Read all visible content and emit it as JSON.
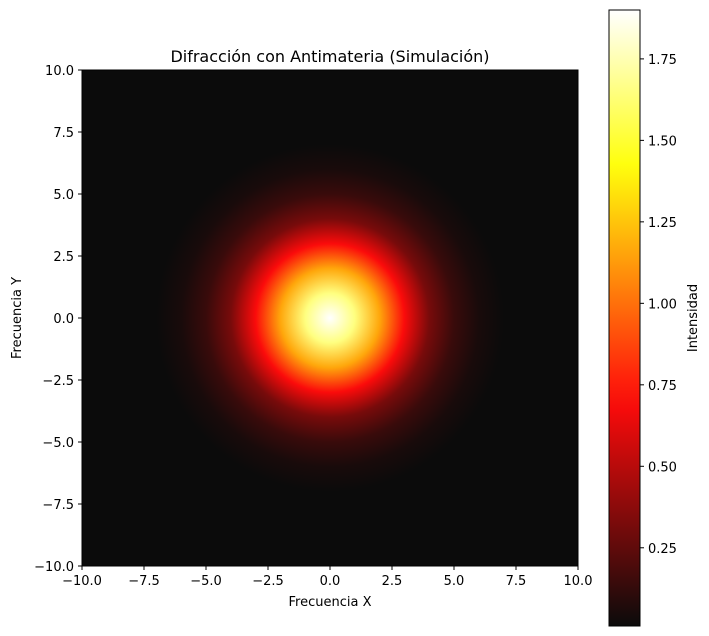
{
  "chart_data": {
    "type": "heatmap",
    "title": "Difracción con Antimateria (Simulación)",
    "xlabel": "Frecuencia X",
    "ylabel": "Frecuencia Y",
    "xlim": [
      -10,
      10
    ],
    "ylim": [
      -10,
      10
    ],
    "x_ticks": [
      -10,
      -7.5,
      -5,
      -2.5,
      0,
      2.5,
      5,
      7.5,
      10
    ],
    "x_tick_labels": [
      "−10.0",
      "−7.5",
      "−5.0",
      "−2.5",
      "0.0",
      "2.5",
      "5.0",
      "7.5",
      "10.0"
    ],
    "y_ticks": [
      -10,
      -7.5,
      -5,
      -2.5,
      0,
      2.5,
      5,
      7.5,
      10
    ],
    "y_tick_labels": [
      "−10.0",
      "−7.5",
      "−5.0",
      "−2.5",
      "0.0",
      "2.5",
      "5.0",
      "7.5",
      "10.0"
    ],
    "colormap": "hot",
    "field": {
      "shape": "radial gaussian",
      "center": [
        0,
        0
      ],
      "peak_intensity": 1.9,
      "intensity_at_radius": [
        {
          "r": 0,
          "value": 1.9
        },
        {
          "r": 1,
          "value": 1.65
        },
        {
          "r": 2,
          "value": 1.16
        },
        {
          "r": 3,
          "value": 0.69
        },
        {
          "r": 4,
          "value": 0.32
        },
        {
          "r": 5,
          "value": 0.14
        },
        {
          "r": 6,
          "value": 0.05
        },
        {
          "r": 7,
          "value": 0.01
        }
      ]
    },
    "colorbar": {
      "label": "Intensidad",
      "range": [
        0.01,
        1.9
      ],
      "ticks": [
        0.25,
        0.5,
        0.75,
        1.0,
        1.25,
        1.5,
        1.75
      ],
      "tick_labels": [
        "0.25",
        "0.50",
        "0.75",
        "1.00",
        "1.25",
        "1.50",
        "1.75"
      ]
    },
    "grid": false
  }
}
